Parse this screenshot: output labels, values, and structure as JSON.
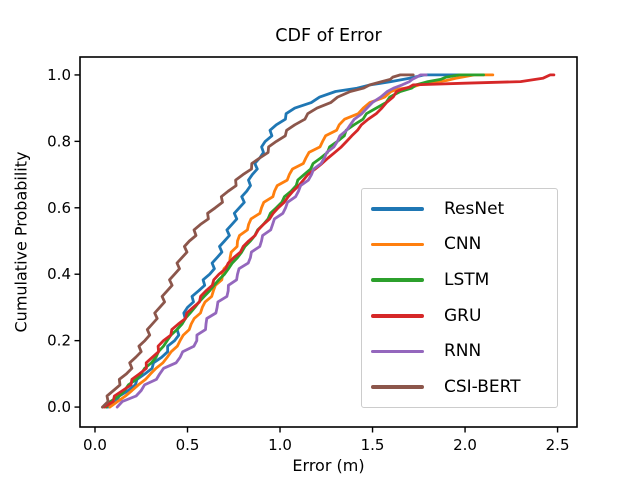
{
  "chart_data": {
    "type": "line",
    "title": "CDF of Error",
    "xlabel": "Error (m)",
    "ylabel": "Cumulative Probability",
    "xlim": [
      -0.081,
      2.605
    ],
    "ylim": [
      -0.06,
      1.054
    ],
    "grid": false,
    "xticks": {
      "values": [
        0.0,
        0.5,
        1.0,
        1.5,
        2.0,
        2.5
      ],
      "labels": [
        "0.0",
        "0.5",
        "1.0",
        "1.5",
        "2.0",
        "2.5"
      ]
    },
    "yticks": {
      "values": [
        0.0,
        0.2,
        0.4,
        0.6,
        0.8,
        1.0
      ],
      "labels": [
        "0.0",
        "0.2",
        "0.4",
        "0.6",
        "0.8",
        "1.0"
      ]
    },
    "legend": {
      "position": "lower right",
      "entries": [
        "ResNet",
        "CNN",
        "LSTM",
        "GRU",
        "RNN",
        "CSI-BERT"
      ]
    },
    "series": [
      {
        "name": "ResNet",
        "color": "#1f77b4",
        "points": [
          [
            0.07,
            0.0
          ],
          [
            0.18,
            0.05
          ],
          [
            0.27,
            0.1
          ],
          [
            0.36,
            0.15
          ],
          [
            0.43,
            0.2
          ],
          [
            0.47,
            0.25
          ],
          [
            0.5,
            0.3
          ],
          [
            0.56,
            0.35
          ],
          [
            0.62,
            0.4
          ],
          [
            0.66,
            0.45
          ],
          [
            0.7,
            0.5
          ],
          [
            0.74,
            0.55
          ],
          [
            0.78,
            0.6
          ],
          [
            0.82,
            0.65
          ],
          [
            0.85,
            0.7
          ],
          [
            0.89,
            0.75
          ],
          [
            0.92,
            0.8
          ],
          [
            0.98,
            0.85
          ],
          [
            1.08,
            0.9
          ],
          [
            1.3,
            0.95
          ],
          [
            1.6,
            0.98
          ],
          [
            1.7,
            0.99
          ],
          [
            1.78,
            1.0
          ],
          [
            1.97,
            1.0
          ]
        ]
      },
      {
        "name": "CNN",
        "color": "#ff7f0e",
        "points": [
          [
            0.08,
            0.0
          ],
          [
            0.2,
            0.05
          ],
          [
            0.3,
            0.1
          ],
          [
            0.39,
            0.15
          ],
          [
            0.46,
            0.2
          ],
          [
            0.52,
            0.25
          ],
          [
            0.58,
            0.3
          ],
          [
            0.64,
            0.35
          ],
          [
            0.69,
            0.4
          ],
          [
            0.73,
            0.45
          ],
          [
            0.77,
            0.5
          ],
          [
            0.83,
            0.55
          ],
          [
            0.9,
            0.6
          ],
          [
            0.97,
            0.65
          ],
          [
            1.05,
            0.7
          ],
          [
            1.14,
            0.75
          ],
          [
            1.23,
            0.8
          ],
          [
            1.32,
            0.85
          ],
          [
            1.45,
            0.9
          ],
          [
            1.6,
            0.95
          ],
          [
            1.75,
            0.97
          ],
          [
            1.95,
            0.99
          ],
          [
            2.05,
            1.0
          ],
          [
            2.15,
            1.0
          ]
        ]
      },
      {
        "name": "LSTM",
        "color": "#2ca02c",
        "points": [
          [
            0.06,
            0.0
          ],
          [
            0.16,
            0.05
          ],
          [
            0.25,
            0.1
          ],
          [
            0.33,
            0.15
          ],
          [
            0.39,
            0.2
          ],
          [
            0.47,
            0.25
          ],
          [
            0.54,
            0.3
          ],
          [
            0.62,
            0.35
          ],
          [
            0.7,
            0.4
          ],
          [
            0.77,
            0.45
          ],
          [
            0.84,
            0.5
          ],
          [
            0.91,
            0.55
          ],
          [
            0.98,
            0.6
          ],
          [
            1.06,
            0.65
          ],
          [
            1.13,
            0.7
          ],
          [
            1.22,
            0.75
          ],
          [
            1.31,
            0.8
          ],
          [
            1.4,
            0.85
          ],
          [
            1.52,
            0.9
          ],
          [
            1.65,
            0.95
          ],
          [
            1.8,
            0.98
          ],
          [
            1.97,
            1.0
          ],
          [
            2.1,
            1.0
          ]
        ]
      },
      {
        "name": "GRU",
        "color": "#d62728",
        "points": [
          [
            0.05,
            0.0
          ],
          [
            0.15,
            0.05
          ],
          [
            0.24,
            0.1
          ],
          [
            0.31,
            0.15
          ],
          [
            0.37,
            0.2
          ],
          [
            0.45,
            0.25
          ],
          [
            0.53,
            0.3
          ],
          [
            0.6,
            0.35
          ],
          [
            0.67,
            0.4
          ],
          [
            0.75,
            0.45
          ],
          [
            0.83,
            0.5
          ],
          [
            0.91,
            0.55
          ],
          [
            0.99,
            0.6
          ],
          [
            1.07,
            0.65
          ],
          [
            1.15,
            0.7
          ],
          [
            1.26,
            0.75
          ],
          [
            1.36,
            0.8
          ],
          [
            1.44,
            0.85
          ],
          [
            1.55,
            0.9
          ],
          [
            1.63,
            0.95
          ],
          [
            1.72,
            0.97
          ],
          [
            2.0,
            0.975
          ],
          [
            2.3,
            0.98
          ],
          [
            2.42,
            0.99
          ],
          [
            2.46,
            1.0
          ],
          [
            2.48,
            1.0
          ]
        ]
      },
      {
        "name": "RNN",
        "color": "#9467bd",
        "points": [
          [
            0.12,
            0.0
          ],
          [
            0.25,
            0.05
          ],
          [
            0.35,
            0.1
          ],
          [
            0.46,
            0.15
          ],
          [
            0.55,
            0.2
          ],
          [
            0.6,
            0.25
          ],
          [
            0.66,
            0.3
          ],
          [
            0.72,
            0.35
          ],
          [
            0.77,
            0.4
          ],
          [
            0.84,
            0.45
          ],
          [
            0.9,
            0.5
          ],
          [
            0.96,
            0.55
          ],
          [
            1.03,
            0.6
          ],
          [
            1.1,
            0.65
          ],
          [
            1.17,
            0.7
          ],
          [
            1.24,
            0.75
          ],
          [
            1.31,
            0.8
          ],
          [
            1.38,
            0.85
          ],
          [
            1.47,
            0.9
          ],
          [
            1.58,
            0.95
          ],
          [
            1.7,
            0.98
          ],
          [
            1.76,
            1.0
          ],
          [
            1.79,
            1.0
          ]
        ]
      },
      {
        "name": "CSI-BERT",
        "color": "#8c564b",
        "points": [
          [
            0.04,
            0.0
          ],
          [
            0.1,
            0.05
          ],
          [
            0.17,
            0.1
          ],
          [
            0.22,
            0.15
          ],
          [
            0.27,
            0.2
          ],
          [
            0.31,
            0.25
          ],
          [
            0.35,
            0.3
          ],
          [
            0.39,
            0.35
          ],
          [
            0.43,
            0.4
          ],
          [
            0.47,
            0.45
          ],
          [
            0.51,
            0.5
          ],
          [
            0.57,
            0.55
          ],
          [
            0.65,
            0.6
          ],
          [
            0.72,
            0.65
          ],
          [
            0.8,
            0.7
          ],
          [
            0.89,
            0.75
          ],
          [
            0.98,
            0.8
          ],
          [
            1.08,
            0.85
          ],
          [
            1.2,
            0.9
          ],
          [
            1.38,
            0.95
          ],
          [
            1.55,
            0.98
          ],
          [
            1.65,
            1.0
          ],
          [
            1.72,
            1.0
          ]
        ]
      }
    ]
  }
}
